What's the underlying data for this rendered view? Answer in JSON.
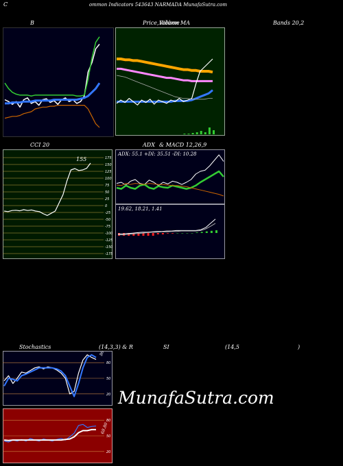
{
  "header": {
    "left": "C",
    "center": "ommon  Indicators 543643 NARMADA MunafaSutra.com"
  },
  "watermark": "MunafaSutra.com",
  "panels": {
    "b": {
      "label": "B"
    },
    "price": {
      "label_left": "Price,",
      "label_mid1": "Volume",
      "label_mid2": "Ribbon",
      "label_ma": "MA"
    },
    "bands": {
      "label": "Bands 20,2"
    },
    "cci": {
      "label": "CCI 20",
      "value": "155"
    },
    "adx": {
      "label_left": "ADX",
      "label_right": "& MACD 12,26,9",
      "info": "ADX: 55.1  +DI: 35.51  -DI: 10.28",
      "macd_info": "19.62,  18.21,  1.41"
    },
    "stoch": {
      "label": "Stochastics",
      "params": "(14,3,3) & R",
      "value": "86.26"
    },
    "rsi": {
      "label": "SI",
      "params": "(14,5",
      "close": ")",
      "value": "68.80"
    }
  },
  "colors": {
    "b_bg": "#00001a",
    "price_bg": "#002200",
    "cci_bg": "#001a00",
    "adx_bg": "#00001a",
    "stoch_bg": "#00001a",
    "rsi_bg": "#8b0000",
    "white": "#ffffff",
    "blue": "#3377ff",
    "green": "#33cc33",
    "orange": "#cc6600",
    "grid": "#cc8844"
  },
  "chart_data": [
    {
      "type": "line",
      "title": "B",
      "series": [
        {
          "color": "#ffffff",
          "values": [
            0.7,
            0.72,
            0.75,
            0.72,
            0.78,
            0.7,
            0.68,
            0.74,
            0.72,
            0.76,
            0.7,
            0.69,
            0.73,
            0.71,
            0.75,
            0.7,
            0.68,
            0.72,
            0.7,
            0.74,
            0.72,
            0.66,
            0.4,
            0.3,
            0.15,
            0.1
          ]
        },
        {
          "color": "#3377ff",
          "values": [
            0.74,
            0.74,
            0.73,
            0.73,
            0.73,
            0.72,
            0.72,
            0.72,
            0.71,
            0.71,
            0.71,
            0.71,
            0.71,
            0.7,
            0.7,
            0.7,
            0.7,
            0.7,
            0.7,
            0.7,
            0.69,
            0.68,
            0.66,
            0.62,
            0.58,
            0.52
          ]
        },
        {
          "color": "#33cc33",
          "values": [
            0.52,
            0.58,
            0.62,
            0.64,
            0.65,
            0.65,
            0.65,
            0.66,
            0.65,
            0.65,
            0.65,
            0.65,
            0.65,
            0.65,
            0.65,
            0.65,
            0.65,
            0.65,
            0.65,
            0.66,
            0.66,
            0.65,
            0.48,
            0.25,
            0.08,
            0.02
          ]
        },
        {
          "color": "#cc6600",
          "values": [
            0.9,
            0.89,
            0.88,
            0.88,
            0.87,
            0.85,
            0.84,
            0.83,
            0.8,
            0.79,
            0.78,
            0.78,
            0.77,
            0.77,
            0.76,
            0.76,
            0.76,
            0.76,
            0.76,
            0.76,
            0.76,
            0.76,
            0.8,
            0.88,
            0.96,
            1.0
          ]
        }
      ]
    },
    {
      "type": "line",
      "title": "Price, Volume Ribbon MA",
      "series": [
        {
          "color": "#ffa500",
          "values": [
            0.3,
            0.3,
            0.31,
            0.31,
            0.32,
            0.32,
            0.33,
            0.34,
            0.35,
            0.36,
            0.37,
            0.38,
            0.39,
            0.4,
            0.41,
            0.42,
            0.43,
            0.43,
            0.44,
            0.44,
            0.45,
            0.45,
            0.45,
            0.46
          ]
        },
        {
          "color": "#ff88ff",
          "values": [
            0.42,
            0.42,
            0.43,
            0.44,
            0.45,
            0.46,
            0.47,
            0.48,
            0.49,
            0.5,
            0.51,
            0.52,
            0.53,
            0.53,
            0.54,
            0.55,
            0.56,
            0.56,
            0.57,
            0.57,
            0.57,
            0.57,
            0.57,
            0.57
          ]
        },
        {
          "color": "#3377ff",
          "values": [
            0.82,
            0.82,
            0.82,
            0.82,
            0.82,
            0.82,
            0.82,
            0.82,
            0.82,
            0.82,
            0.82,
            0.82,
            0.82,
            0.82,
            0.81,
            0.81,
            0.81,
            0.81,
            0.8,
            0.78,
            0.76,
            0.74,
            0.72,
            0.68
          ]
        },
        {
          "color": "#ffffff",
          "values": [
            0.84,
            0.8,
            0.83,
            0.78,
            0.82,
            0.86,
            0.8,
            0.83,
            0.79,
            0.85,
            0.8,
            0.82,
            0.84,
            0.8,
            0.82,
            0.78,
            0.82,
            0.8,
            0.78,
            0.6,
            0.45,
            0.4,
            0.35,
            0.3
          ]
        }
      ],
      "volume": [
        0,
        0,
        0,
        0,
        0,
        0,
        0,
        0,
        0,
        0,
        0,
        0,
        0,
        0,
        0,
        0,
        0.1,
        0.1,
        0.2,
        0.3,
        0.5,
        0.3,
        1.0,
        0.6
      ]
    },
    {
      "type": "line",
      "title": "CCI 20",
      "y_ticks": [
        "175",
        "150",
        "125",
        "100",
        "75",
        "50",
        "25",
        "0",
        "-25",
        "-50",
        "-75",
        "-100",
        "-125",
        "-150",
        "-175"
      ],
      "ylim": [
        -175,
        175
      ],
      "series": [
        {
          "color": "#ffffff",
          "values": [
            -20,
            -22,
            -18,
            -17,
            -19,
            -15,
            -18,
            -16,
            -20,
            -22,
            -30,
            -36,
            -28,
            -20,
            10,
            40,
            90,
            130,
            135,
            128,
            130,
            136,
            155
          ]
        }
      ]
    },
    {
      "type": "line",
      "title": "ADX & MACD 12,26,9",
      "series": [
        {
          "color": "#ffffff",
          "values": [
            0.62,
            0.6,
            0.65,
            0.58,
            0.55,
            0.62,
            0.64,
            0.56,
            0.6,
            0.66,
            0.6,
            0.63,
            0.58,
            0.6,
            0.64,
            0.6,
            0.55,
            0.45,
            0.4,
            0.38,
            0.3,
            0.2,
            0.1,
            0.22
          ]
        },
        {
          "color": "#33cc33",
          "values": [
            0.7,
            0.72,
            0.66,
            0.7,
            0.72,
            0.66,
            0.64,
            0.7,
            0.72,
            0.67,
            0.69,
            0.7,
            0.66,
            0.68,
            0.7,
            0.72,
            0.7,
            0.66,
            0.6,
            0.55,
            0.5,
            0.45,
            0.4,
            0.5
          ]
        },
        {
          "color": "#cc6600",
          "values": [
            0.65,
            0.66,
            0.62,
            0.64,
            0.62,
            0.63,
            0.64,
            0.62,
            0.63,
            0.64,
            0.64,
            0.65,
            0.66,
            0.66,
            0.67,
            0.68,
            0.7,
            0.72,
            0.74,
            0.76,
            0.78,
            0.8,
            0.82,
            0.85
          ]
        }
      ]
    },
    {
      "type": "line",
      "title": "MACD",
      "series": [
        {
          "color": "#ffffff",
          "values": [
            0.7,
            0.7,
            0.69,
            0.68,
            0.67,
            0.66,
            0.66,
            0.65,
            0.64,
            0.64,
            0.63,
            0.63,
            0.62,
            0.62,
            0.62,
            0.62,
            0.62,
            0.6,
            0.55,
            0.45,
            0.35
          ]
        },
        {
          "color": "#aaaaaa",
          "values": [
            0.72,
            0.72,
            0.71,
            0.7,
            0.69,
            0.68,
            0.67,
            0.66,
            0.66,
            0.65,
            0.65,
            0.64,
            0.64,
            0.63,
            0.63,
            0.63,
            0.63,
            0.62,
            0.58,
            0.52,
            0.45
          ]
        }
      ],
      "histogram": [
        -1,
        -1,
        -1,
        -1,
        -1,
        -1,
        -1,
        -1,
        -0.5,
        -0.5,
        -0.2,
        -0.2,
        0,
        0,
        0,
        0,
        0.2,
        0.4,
        0.6,
        0.8,
        1.0
      ]
    },
    {
      "type": "line",
      "title": "Stochastics (14,3,3)",
      "y_ticks": [
        "80",
        "50",
        "20"
      ],
      "ylim": [
        0,
        100
      ],
      "series": [
        {
          "color": "#ffffff",
          "values": [
            45,
            55,
            40,
            50,
            62,
            60,
            65,
            70,
            72,
            68,
            72,
            70,
            66,
            60,
            50,
            20,
            25,
            60,
            85,
            95,
            90,
            86
          ]
        },
        {
          "color": "#3377ff",
          "values": [
            35,
            50,
            48,
            45,
            55,
            58,
            62,
            66,
            70,
            70,
            70,
            70,
            68,
            64,
            55,
            35,
            15,
            40,
            70,
            90,
            95,
            90
          ]
        }
      ]
    },
    {
      "type": "line",
      "title": "RSI (14,5)",
      "y_ticks": [
        "80",
        "50",
        "20"
      ],
      "ylim": [
        0,
        100
      ],
      "series": [
        {
          "color": "#3377ff",
          "values": [
            40,
            38,
            42,
            40,
            43,
            40,
            45,
            42,
            40,
            44,
            42,
            40,
            43,
            45,
            42,
            48,
            55,
            70,
            72,
            66,
            68,
            69
          ]
        },
        {
          "color": "#ffffff",
          "values": [
            42,
            41,
            42,
            42,
            42,
            42,
            42,
            42,
            42,
            42,
            42,
            42,
            42,
            42,
            43,
            44,
            48,
            56,
            60,
            60,
            62,
            62
          ]
        }
      ]
    }
  ]
}
